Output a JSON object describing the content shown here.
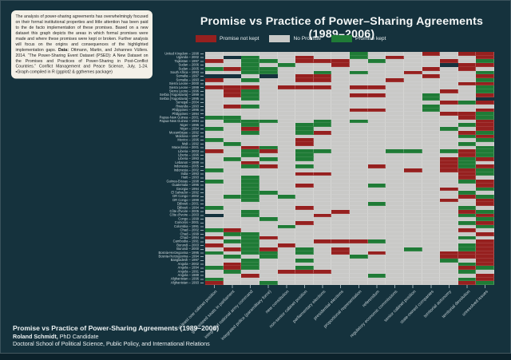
{
  "note_box": {
    "body": "The analysis of power-sharing agreements has overwhelmingly focused on their formal institutional properties and little attention has been paid to the de facto implementation of these promises. Based on a new dataset this graph depicts the areas in which formal promises were made and where these promises were kept or broken. Further analysis will focus on the origins and consequences of the highlighted implementation gaps. ",
    "data_label": "Data:",
    "citation": " Ottmann, Martin, and Johannes Vüllers. 2014. “The Power-Sharing Event Dataset (PSED): A New Dataset on the Promises and Practices of Power-Sharing in Post-Conflict Countries.” Conflict Management and Peace Science, July, 1-24. ▪Graph compiled in R (ggplot2 & ggthemes package)"
  },
  "title": "Promise vs Practice of Power–Sharing Agreements (1989–2006)",
  "legend": {
    "items": [
      {
        "label": "Promise not kept",
        "color": "#96201f"
      },
      {
        "label": "No Promise",
        "color": "#c9c9c7"
      },
      {
        "label": "Promise kept",
        "color": "#1f7b36"
      }
    ]
  },
  "footer": {
    "line1": "Promise vs Practice of Power-Sharing Agreements (1989–2006)",
    "author_bold": "Roland Schmidt,",
    "author_rest": " PhD Candidate",
    "line3": "Doctoral School of Political Science, Public Policy, and International Relations"
  },
  "chart_data": {
    "type": "heatmap",
    "title": "Promise vs Practice of Power–Sharing Agreements (1989–2006)",
    "legend_position": "top",
    "grid": "faint white gridlines over light-gray field",
    "cell_encoding": {
      "N": "No Promise",
      "R": "Promise not kept",
      "G": "Promise kept",
      "X": "no data (background)"
    },
    "colors": {
      "background": "#15323d",
      "promise_not_kept": "#96201f",
      "no_promise": "#c9c9c7",
      "promise_kept": "#1f7b36"
    },
    "categories": [
      "at least one cabinet position",
      "guaranteed seats in parliament",
      "integrated national army command",
      "integrated police (paramilitary force)",
      "new constitution",
      "non-senior cabinet position",
      "parliamentary elections",
      "presidential elections",
      "proportional representation",
      "referendum",
      "regulatory economic commissions",
      "senior cabinet position",
      "state-owned companies",
      "territorial autonomy",
      "territorial devolution",
      "unresolved issues"
    ],
    "rows": [
      {
        "label": "United Kingdom – 1998",
        "cells": "NNNNNNNNGNNNRNRR"
      },
      {
        "label": "Uganda – 2002",
        "cells": "NXGNNRNNGNRNNNNR"
      },
      {
        "label": "Tajikistan – 1997",
        "cells": "RNGGNRRRNGNNNRNG"
      },
      {
        "label": "Sudan – 2006",
        "cells": "NNGNGNNRNNNNNXRR"
      },
      {
        "label": "Sudan – 2005",
        "cells": "GRGGNNNNNNNNRNRN"
      },
      {
        "label": "South Africa – 1993",
        "cells": "NNGGNNGNGNNRNNNG"
      },
      {
        "label": "Somalia – 1997",
        "cells": "XXNXNRRNNNNNRNNR"
      },
      {
        "label": "Somalia – 1993",
        "cells": "RNGNNRRNNNRNNNNG"
      },
      {
        "label": "Sierra Leone – 2000",
        "cells": "NNNNNNNNNNNNNNRR"
      },
      {
        "label": "Sierra Leone – 1999",
        "cells": "RRRNRRRNRRNNNNNG"
      },
      {
        "label": "Sierra Leone – 1996",
        "cells": "NRGNNNNNNNNNNRNG"
      },
      {
        "label": "Serbia (Yugoslavia) – 1999",
        "cells": "NRGNNNNNRRNNGNNR"
      },
      {
        "label": "Serbia (Yugoslavia) – 1995",
        "cells": "NNGNNNNNNNNNGNNX"
      },
      {
        "label": "Senegal – 2004",
        "cells": "NNNNNNNNNNNNNRGR"
      },
      {
        "label": "Rwanda – 1993",
        "cells": "NRGNNNNNNNNNGNNN"
      },
      {
        "label": "Philippines – 1996",
        "cells": "NNNNNNNNRRNNGNNR"
      },
      {
        "label": "Philippines – 1994",
        "cells": "NNNNNNNNNNNNNRRG"
      },
      {
        "label": "Papua-New Guinea – 2001",
        "cells": "GGNNNNNNNNNNNNRG"
      },
      {
        "label": "Papua-New Guinea – 1994",
        "cells": "NGGGNNGNGNNNNNNR"
      },
      {
        "label": "Niger – 1995",
        "cells": "NNGNNGGNNNNNNNGR"
      },
      {
        "label": "Niger – 1994",
        "cells": "GNRNNGNNNNNNNGNR"
      },
      {
        "label": "Mozambique – 1992",
        "cells": "NNGNNGRNNNNNNNRG"
      },
      {
        "label": "Moldova – 1997",
        "cells": "NNNNNNNNNNNNNNGR"
      },
      {
        "label": "Mexico – 1996",
        "cells": "GNNNNRNNNNNNNNNG"
      },
      {
        "label": "Mali – 1992",
        "cells": "NGNNNRNNNNNNNNGN"
      },
      {
        "label": "Macedonia – 2001",
        "cells": "NNRGNNNNNNNNNNNG"
      },
      {
        "label": "Liberia – 2003",
        "cells": "RNGRNGGNNNGGNGRG"
      },
      {
        "label": "Liberia – 1996",
        "cells": "NNGNNGNNNNNNNNRG"
      },
      {
        "label": "Liberia – 1993",
        "cells": "NGNGNGNNNNNNNRGR"
      },
      {
        "label": "Lebanon – 1989",
        "cells": "NNRNNNNNNNNNNRGN"
      },
      {
        "label": "Indonesia – 2005",
        "cells": "NNGRNGNNNRNNNRGR"
      },
      {
        "label": "Indonesia – 2002",
        "cells": "GNNNNNNNNNNRNRRG"
      },
      {
        "label": "India – 1993",
        "cells": "NNNNNRRNNNNNNNRG"
      },
      {
        "label": "Haiti – 1993",
        "cells": "NNGNNNNNNNNNNNRN"
      },
      {
        "label": "Guinea-Bissau – 1998",
        "cells": "GNGNNNNNNNNNNNGR"
      },
      {
        "label": "Guatemala – 1996",
        "cells": "NNGNNRNNNGNNNNNR"
      },
      {
        "label": "Georgia – 1994",
        "cells": "NNGNNNNNNNNNNRNG"
      },
      {
        "label": "El Salvador – 1992",
        "cells": "NNGGNNNNNNNNNNGN"
      },
      {
        "label": "DR Congo – 2002",
        "cells": "NGGNGNNNNNNNNNRG"
      },
      {
        "label": "DR Congo – 1999",
        "cells": "NNGNNNNNNNNNNRNR"
      },
      {
        "label": "Djibouti – 2001",
        "cells": "NNNNNNNNNGNNNNNR"
      },
      {
        "label": "Djibouti – 1994",
        "cells": "GNNNNRNNNNNNNNGN"
      },
      {
        "label": "Côte d'Ivoire – 2005",
        "cells": "NNGNNNNRNNNNNNRG"
      },
      {
        "label": "Côte d'Ivoire – 2003",
        "cells": "XNGNNNRNNNNNNNGR"
      },
      {
        "label": "Congo – 1999",
        "cells": "NNNGNNNNNNNNNNNG"
      },
      {
        "label": "Comoros – 2001",
        "cells": "NNNNNRNNNNNNNNGR"
      },
      {
        "label": "Colombia – 1991",
        "cells": "NNNNGNNNNNNNNNNG"
      },
      {
        "label": "Chad – 2002",
        "cells": "GRNNNNNNNNNNNNRN"
      },
      {
        "label": "Chad – 1999",
        "cells": "NGGNNNNNNNNNNNNR"
      },
      {
        "label": "Chad – 1994",
        "cells": "RNGRNNNNNNNNNNGN"
      },
      {
        "label": "Cambodia – 1991",
        "cells": "NGGNNNRRRGNNNNNR"
      },
      {
        "label": "Burundi – 2003",
        "cells": "RNGNRNNNNNNNNNGR"
      },
      {
        "label": "Burundi – 2000",
        "cells": "NRGRNGNRNNNGNNGR"
      },
      {
        "label": "Bosnia-Herzegovina – 1995",
        "cells": "GNGGNGNRNRNNNRRR"
      },
      {
        "label": "Bosnia-Herzegovina – 1994",
        "cells": "NGNGNNNNGNNNNRRR"
      },
      {
        "label": "Bangladesh – 1997",
        "cells": "NNGNNGNNNNNNNGNR"
      },
      {
        "label": "Angola – 2002",
        "cells": "NRGNNNNNNNNNNNGR"
      },
      {
        "label": "Angola – 1994",
        "cells": "GRGNNGNNNNNNNNRG"
      },
      {
        "label": "Angola – 1991",
        "cells": "NGNNRRRNNNNNNNGN"
      },
      {
        "label": "Angola – 1989",
        "cells": "NNRNNNNNNGNNNNNR"
      },
      {
        "label": "Afghanistan – 1996",
        "cells": "GNNNNNNNNNNNNNGR"
      },
      {
        "label": "Afghanistan – 1993",
        "cells": "RNNGNNNNNNNNNNRG"
      }
    ]
  }
}
